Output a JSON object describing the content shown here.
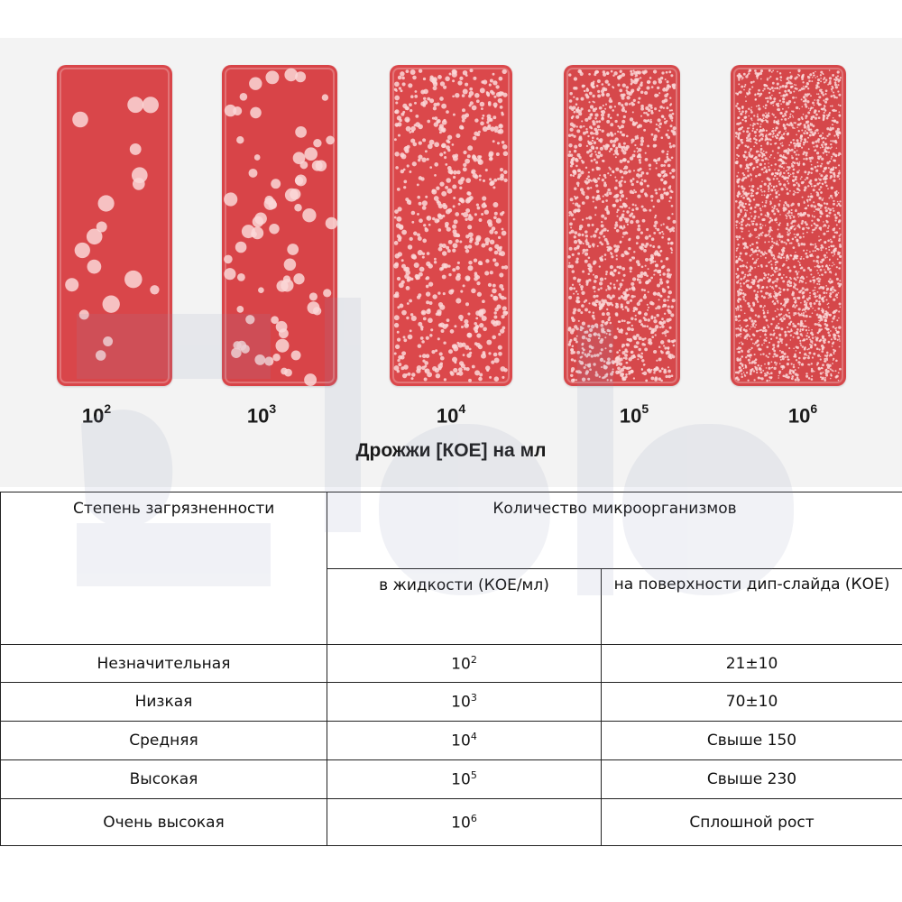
{
  "figure": {
    "slides": [
      {
        "base": "10",
        "exp": "2",
        "bg": "#d9464a",
        "colonies": 18,
        "size": 7
      },
      {
        "base": "10",
        "exp": "3",
        "bg": "#d84448",
        "colonies": 70,
        "size": 5.5
      },
      {
        "base": "10",
        "exp": "4",
        "bg": "#db484b",
        "colonies": 700,
        "size": 2.2
      },
      {
        "base": "10",
        "exp": "5",
        "bg": "#d6484b",
        "colonies": 1400,
        "size": 1.6
      },
      {
        "base": "10",
        "exp": "6",
        "bg": "#d5474a",
        "colonies": 2600,
        "size": 1.2
      }
    ],
    "caption": "Дрожжи [КОЕ] на мл"
  },
  "table": {
    "header": {
      "col1": "Степень загрязненности",
      "col2_group": "Количество микроорганизмов",
      "col2a": "в жидкости (КОЕ/мл)",
      "col2b": "на поверхности дип-слайда (КОЕ)"
    },
    "rows": [
      {
        "level": "Незначительная",
        "base": "10",
        "exp": "2",
        "surface": "21±10"
      },
      {
        "level": "Низкая",
        "base": "10",
        "exp": "3",
        "surface": "70±10"
      },
      {
        "level": "Средняя",
        "base": "10",
        "exp": "4",
        "surface": "Свыше 150"
      },
      {
        "level": "Высокая",
        "base": "10",
        "exp": "5",
        "surface": "Свыше 230"
      },
      {
        "level": "Очень высокая",
        "base": "10",
        "exp": "6",
        "surface": "Сплошной рост"
      }
    ]
  }
}
